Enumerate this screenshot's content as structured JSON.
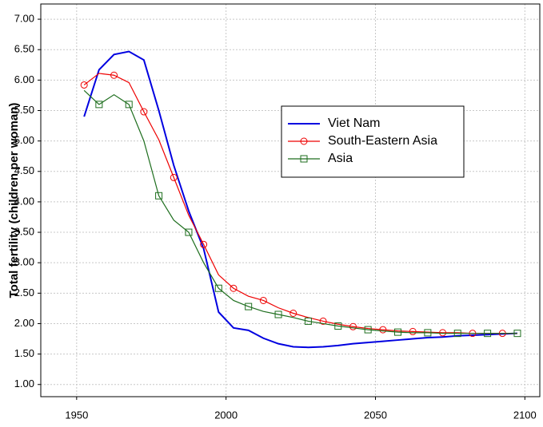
{
  "chart_data": {
    "type": "line",
    "y_label": "Total fertility (children per woman)",
    "x": [
      1952.5,
      1957.5,
      1962.5,
      1967.5,
      1972.5,
      1977.5,
      1982.5,
      1987.5,
      1992.5,
      1997.5,
      2002.5,
      2007.5,
      2012.5,
      2017.5,
      2022.5,
      2027.5,
      2032.5,
      2037.5,
      2042.5,
      2047.5,
      2052.5,
      2057.5,
      2062.5,
      2067.5,
      2072.5,
      2077.5,
      2082.5,
      2087.5,
      2092.5,
      2097.5
    ],
    "series": [
      {
        "name": "Viet Nam",
        "color": "#0000e0",
        "marker": "none",
        "values": [
          5.4,
          6.17,
          6.42,
          6.47,
          6.33,
          5.5,
          4.6,
          3.85,
          3.23,
          2.19,
          1.93,
          1.89,
          1.76,
          1.67,
          1.62,
          1.61,
          1.62,
          1.64,
          1.67,
          1.69,
          1.71,
          1.73,
          1.75,
          1.77,
          1.78,
          1.8,
          1.81,
          1.82,
          1.83,
          1.84
        ]
      },
      {
        "name": "South-Eastern Asia",
        "color": "#ee0000",
        "marker": "circle",
        "values": [
          5.92,
          6.11,
          6.08,
          5.96,
          5.48,
          5.02,
          4.4,
          3.78,
          3.3,
          2.8,
          2.58,
          2.45,
          2.38,
          2.26,
          2.17,
          2.1,
          2.04,
          1.99,
          1.95,
          1.92,
          1.9,
          1.88,
          1.87,
          1.86,
          1.85,
          1.85,
          1.84,
          1.84,
          1.84,
          1.84
        ]
      },
      {
        "name": "Asia",
        "color": "#1e6e1e",
        "marker": "square",
        "values": [
          5.83,
          5.6,
          5.76,
          5.6,
          5.0,
          4.1,
          3.7,
          3.5,
          3.0,
          2.58,
          2.38,
          2.28,
          2.2,
          2.15,
          2.1,
          2.04,
          2.0,
          1.96,
          1.93,
          1.9,
          1.88,
          1.86,
          1.85,
          1.85,
          1.84,
          1.84,
          1.84,
          1.84,
          1.84,
          1.84
        ]
      }
    ],
    "xlim": [
      1938,
      2105
    ],
    "xticks": [
      1950,
      2000,
      2050,
      2100
    ],
    "ylim": [
      0.8,
      7.25
    ],
    "yticks": [
      {
        "value": 1,
        "label": "1.00"
      },
      {
        "value": 1.5,
        "label": "1.50"
      },
      {
        "value": 2,
        "label": "2.00"
      },
      {
        "value": 2.5,
        "label": "2.50"
      },
      {
        "value": 3,
        "label": "3.00"
      },
      {
        "value": 3.5,
        "label": "3.50"
      },
      {
        "value": 4,
        "label": "4.00"
      },
      {
        "value": 4.5,
        "label": "4.50"
      },
      {
        "value": 5,
        "label": "5.00"
      },
      {
        "value": 5.5,
        "label": "5.50"
      },
      {
        "value": 6,
        "label": "6.00"
      },
      {
        "value": 6.5,
        "label": "6.50"
      },
      {
        "value": 7,
        "label": "7.00"
      }
    ],
    "grid": true,
    "legend_position": "center"
  }
}
